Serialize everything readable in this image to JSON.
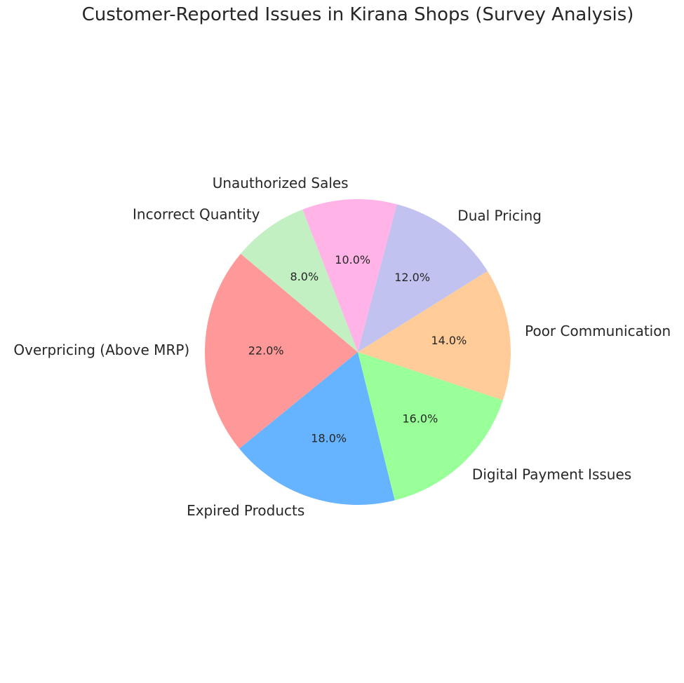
{
  "chart_data": {
    "type": "pie",
    "title": "Customer-Reported Issues in Kirana Shops (Survey Analysis)",
    "categories": [
      "Overpricing (Above MRP)",
      "Expired Products",
      "Digital Payment Issues",
      "Poor Communication",
      "Dual Pricing",
      "Unauthorized Sales",
      "Incorrect Quantity"
    ],
    "values": [
      22,
      18,
      16,
      14,
      12,
      10,
      8
    ],
    "percent_labels": [
      "22.0%",
      "18.0%",
      "16.0%",
      "14.0%",
      "12.0%",
      "10.0%",
      "8.0%"
    ],
    "colors": [
      "#ff9999",
      "#66b3ff",
      "#99ff99",
      "#ffcc99",
      "#c2c2f0",
      "#ffb3e6",
      "#c2f0c2"
    ],
    "start_angle_deg": 140,
    "direction": "counterclockwise",
    "legend": "none"
  }
}
